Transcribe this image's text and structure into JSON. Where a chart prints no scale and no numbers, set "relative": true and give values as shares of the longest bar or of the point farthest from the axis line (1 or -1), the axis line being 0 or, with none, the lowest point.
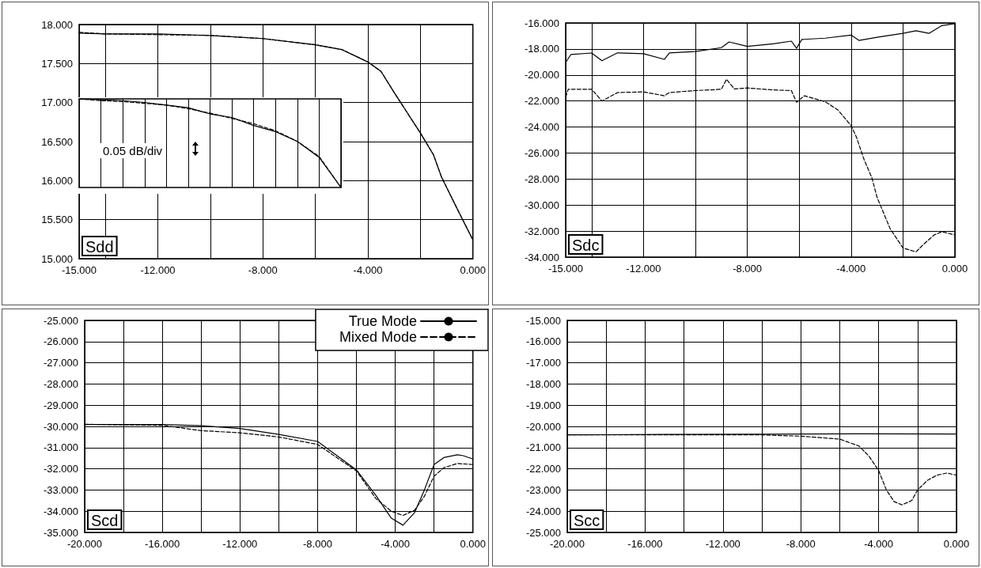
{
  "chart_data": [
    {
      "type": "line",
      "annotations": [
        "Sdd"
      ],
      "xlim": [
        -15,
        0
      ],
      "ylim": [
        15,
        18
      ],
      "grid": true,
      "legend": false,
      "xticks": [
        {
          "value": -15,
          "label": "-15.000"
        },
        {
          "value": -14,
          "label": null
        },
        {
          "value": -12,
          "label": "-12.000"
        },
        {
          "value": -10,
          "label": null
        },
        {
          "value": -8,
          "label": "-8.000"
        },
        {
          "value": -6,
          "label": null
        },
        {
          "value": -4,
          "label": "-4.000"
        },
        {
          "value": -2,
          "label": null
        },
        {
          "value": 0,
          "label": "0.000"
        }
      ],
      "yticks": [
        {
          "value": 15,
          "label": "15.000"
        },
        {
          "value": 15.5,
          "label": "15.500"
        },
        {
          "value": 16,
          "label": "16.000"
        },
        {
          "value": 16.5,
          "label": "16.500"
        },
        {
          "value": 17,
          "label": "17.000"
        },
        {
          "value": 17.5,
          "label": "17.500"
        },
        {
          "value": 18,
          "label": "18.000"
        }
      ],
      "series": [
        {
          "color": "#000000",
          "line_style": "solid",
          "x": [
            -15,
            -14,
            -12,
            -10,
            -8,
            -6,
            -5,
            -4,
            -3.5,
            -3,
            -2,
            -1.5,
            -1.2,
            -0.6,
            0
          ],
          "values": [
            17.89,
            17.88,
            17.88,
            17.86,
            17.82,
            17.74,
            17.68,
            17.52,
            17.4,
            17.13,
            16.61,
            16.33,
            16.05,
            15.64,
            15.24
          ]
        },
        {
          "color": "#000000",
          "line_style": "dashed",
          "x": [
            -15,
            -14,
            -12,
            -10,
            -8,
            -6,
            -5,
            -4,
            -3.5,
            -3,
            -2,
            -1.5,
            -1.2,
            -0.6,
            0
          ],
          "values": [
            17.9,
            17.88,
            17.87,
            17.86,
            17.82,
            17.74,
            17.68,
            17.52,
            17.4,
            17.13,
            16.61,
            16.33,
            16.05,
            15.64,
            15.24
          ]
        }
      ]
    },
    {
      "type": "line",
      "relative": true,
      "annotations": [
        "0.05 dB/div"
      ],
      "grid": "x",
      "legend": false,
      "categories": [
        null,
        null,
        null,
        null,
        null,
        null,
        null,
        null,
        null,
        null,
        null,
        null,
        null
      ],
      "series": [
        {
          "color": "#000000",
          "line_style": "solid",
          "values": [
            1.0,
            0.99,
            0.98,
            0.96,
            0.93,
            0.9,
            0.83,
            0.79,
            0.7,
            0.63,
            0.52,
            0.34,
            0
          ]
        },
        {
          "color": "#000000",
          "line_style": "dashed",
          "values": [
            1.0,
            0.98,
            0.97,
            0.95,
            0.93,
            0.89,
            0.84,
            0.78,
            0.72,
            0.64,
            0.52,
            0.35,
            0
          ]
        }
      ]
    },
    {
      "type": "line",
      "annotations": [
        "Sdc"
      ],
      "xlim": [
        -15,
        0
      ],
      "ylim": [
        -34,
        -16
      ],
      "grid": true,
      "legend": false,
      "xticks": [
        {
          "value": -15,
          "label": "-15.000"
        },
        {
          "value": -14,
          "label": null
        },
        {
          "value": -12,
          "label": "-12.000"
        },
        {
          "value": -10,
          "label": null
        },
        {
          "value": -8,
          "label": "-8.000"
        },
        {
          "value": -6,
          "label": null
        },
        {
          "value": -4,
          "label": "-4.000"
        },
        {
          "value": -2,
          "label": null
        },
        {
          "value": 0,
          "label": "0.000"
        }
      ],
      "yticks": [
        {
          "value": -34,
          "label": "-34.000"
        },
        {
          "value": -32,
          "label": "-32.000"
        },
        {
          "value": -30,
          "label": "-30.000"
        },
        {
          "value": -28,
          "label": "-28.000"
        },
        {
          "value": -26,
          "label": "-26.000"
        },
        {
          "value": -24,
          "label": "-24.000"
        },
        {
          "value": -22,
          "label": "-22.000"
        },
        {
          "value": -20,
          "label": "-20.000"
        },
        {
          "value": -18,
          "label": "-18.000"
        },
        {
          "value": -16,
          "label": "-16.000"
        }
      ],
      "series": [
        {
          "color": "#000000",
          "line_style": "solid",
          "x": [
            -15,
            -14.8,
            -14,
            -13.6,
            -13,
            -12,
            -11.2,
            -11,
            -10,
            -9,
            -8.7,
            -8,
            -7,
            -6.3,
            -6.1,
            -5.9,
            -5,
            -4,
            -3.7,
            -3,
            -2,
            -1.5,
            -1,
            -0.5,
            0
          ],
          "values": [
            -19.04,
            -18.43,
            -18.31,
            -18.9,
            -18.3,
            -18.36,
            -18.8,
            -18.3,
            -18.2,
            -17.9,
            -17.46,
            -17.8,
            -17.6,
            -17.4,
            -17.95,
            -17.27,
            -17.17,
            -16.93,
            -17.34,
            -17.1,
            -16.8,
            -16.6,
            -16.8,
            -16.2,
            -16.05
          ]
        },
        {
          "color": "#000000",
          "line_style": "dashed",
          "x": [
            -15,
            -14.9,
            -14,
            -13.6,
            -13,
            -12,
            -11.2,
            -11,
            -10,
            -9,
            -8.8,
            -8.5,
            -8,
            -7,
            -6.3,
            -6.1,
            -5.8,
            -5,
            -4.5,
            -4,
            -3.8,
            -3.5,
            -3.2,
            -3,
            -2.5,
            -2,
            -1.5,
            -1.2,
            -0.8,
            -0.5,
            0
          ],
          "values": [
            -21.7,
            -21.1,
            -21.1,
            -22.0,
            -21.35,
            -21.3,
            -21.6,
            -21.35,
            -21.2,
            -21.1,
            -20.33,
            -21.07,
            -21.0,
            -21.15,
            -21.2,
            -22.1,
            -21.6,
            -22.05,
            -22.7,
            -23.9,
            -24.75,
            -26.5,
            -27.9,
            -29.4,
            -31.8,
            -33.3,
            -33.6,
            -33.0,
            -32.3,
            -32.05,
            -32.3
          ]
        }
      ]
    },
    {
      "type": "line",
      "annotations": [
        "Scd"
      ],
      "xlim": [
        -20,
        0
      ],
      "ylim": [
        -35,
        -25
      ],
      "grid": true,
      "legend": "top right",
      "xticks": [
        {
          "value": -20,
          "label": "-20.000"
        },
        {
          "value": -18,
          "label": null
        },
        {
          "value": -16,
          "label": "-16.000"
        },
        {
          "value": -14,
          "label": null
        },
        {
          "value": -12,
          "label": "-12.000"
        },
        {
          "value": -10,
          "label": null
        },
        {
          "value": -8,
          "label": "-8.000"
        },
        {
          "value": -6,
          "label": null
        },
        {
          "value": -4,
          "label": "-4.000"
        },
        {
          "value": -2,
          "label": null
        },
        {
          "value": 0,
          "label": "0.000"
        }
      ],
      "yticks": [
        {
          "value": -35,
          "label": "-35.000"
        },
        {
          "value": -34,
          "label": "-34.000"
        },
        {
          "value": -33,
          "label": "-33.000"
        },
        {
          "value": -32,
          "label": "-32.000"
        },
        {
          "value": -31,
          "label": "-31.000"
        },
        {
          "value": -30,
          "label": "-30.000"
        },
        {
          "value": -29,
          "label": "-29.000"
        },
        {
          "value": -28,
          "label": "-28.000"
        },
        {
          "value": -27,
          "label": "-27.000"
        },
        {
          "value": -26,
          "label": "-26.000"
        },
        {
          "value": -25,
          "label": "-25.000"
        }
      ],
      "series": [
        {
          "name": "True Mode",
          "color": "#000000",
          "line_style": "solid",
          "x": [
            -20,
            -16,
            -14,
            -12,
            -10,
            -8,
            -6,
            -5,
            -4.2,
            -3.6,
            -3,
            -2.5,
            -2,
            -1.5,
            -0.8,
            -0.5,
            0
          ],
          "values": [
            -29.91,
            -29.91,
            -29.97,
            -30.1,
            -30.38,
            -30.71,
            -32.05,
            -33.25,
            -34.33,
            -34.66,
            -34.06,
            -33.0,
            -31.8,
            -31.47,
            -31.34,
            -31.38,
            -31.54
          ]
        },
        {
          "name": "Mixed Mode",
          "color": "#000000",
          "line_style": "dashed",
          "x": [
            -20,
            -16,
            -14,
            -12,
            -10,
            -8,
            -6,
            -5,
            -4.2,
            -3.6,
            -3,
            -2.5,
            -2,
            -1.5,
            -0.8,
            0
          ],
          "values": [
            -29.9,
            -29.95,
            -30.2,
            -30.3,
            -30.5,
            -30.85,
            -32.1,
            -33.4,
            -34.0,
            -34.2,
            -33.95,
            -33.3,
            -32.35,
            -31.95,
            -31.75,
            -31.8
          ]
        }
      ]
    },
    {
      "type": "line",
      "annotations": [
        "Scc"
      ],
      "xlim": [
        -20,
        0
      ],
      "ylim": [
        -25,
        -15
      ],
      "grid": true,
      "legend": false,
      "xticks": [
        {
          "value": -20,
          "label": "-20.000"
        },
        {
          "value": -18,
          "label": null
        },
        {
          "value": -16,
          "label": "-16.000"
        },
        {
          "value": -14,
          "label": null
        },
        {
          "value": -12,
          "label": "-12.000"
        },
        {
          "value": -10,
          "label": null
        },
        {
          "value": -8,
          "label": "-8.000"
        },
        {
          "value": -6,
          "label": null
        },
        {
          "value": -4,
          "label": "-4.000"
        },
        {
          "value": -2,
          "label": null
        },
        {
          "value": 0,
          "label": "0.000"
        }
      ],
      "yticks": [
        {
          "value": -25,
          "label": "-25.000"
        },
        {
          "value": -24,
          "label": "-24.000"
        },
        {
          "value": -23,
          "label": "-23.000"
        },
        {
          "value": -22,
          "label": "-22.000"
        },
        {
          "value": -21,
          "label": "-21.000"
        },
        {
          "value": -20,
          "label": "-20.000"
        },
        {
          "value": -19,
          "label": "-19.000"
        },
        {
          "value": -18,
          "label": "-18.000"
        },
        {
          "value": -17,
          "label": "-17.000"
        },
        {
          "value": -16,
          "label": "-16.000"
        },
        {
          "value": -15,
          "label": "-15.000"
        }
      ],
      "series": [
        {
          "color": "#000000",
          "line_style": "solid",
          "x": [
            -20,
            -15,
            -10,
            -5,
            0
          ],
          "values": [
            -20.4,
            -20.38,
            -20.37,
            -20.35,
            -20.36
          ]
        },
        {
          "color": "#000000",
          "line_style": "dashed",
          "x": [
            -20,
            -15,
            -10,
            -8,
            -6,
            -5,
            -4.5,
            -4,
            -3.6,
            -3.2,
            -2.8,
            -2.3,
            -2,
            -1.5,
            -1,
            -0.5,
            0
          ],
          "values": [
            -20.4,
            -20.4,
            -20.4,
            -20.46,
            -20.6,
            -20.93,
            -21.4,
            -22.08,
            -23.0,
            -23.55,
            -23.7,
            -23.5,
            -23.0,
            -22.55,
            -22.3,
            -22.2,
            -22.3
          ]
        }
      ]
    }
  ]
}
